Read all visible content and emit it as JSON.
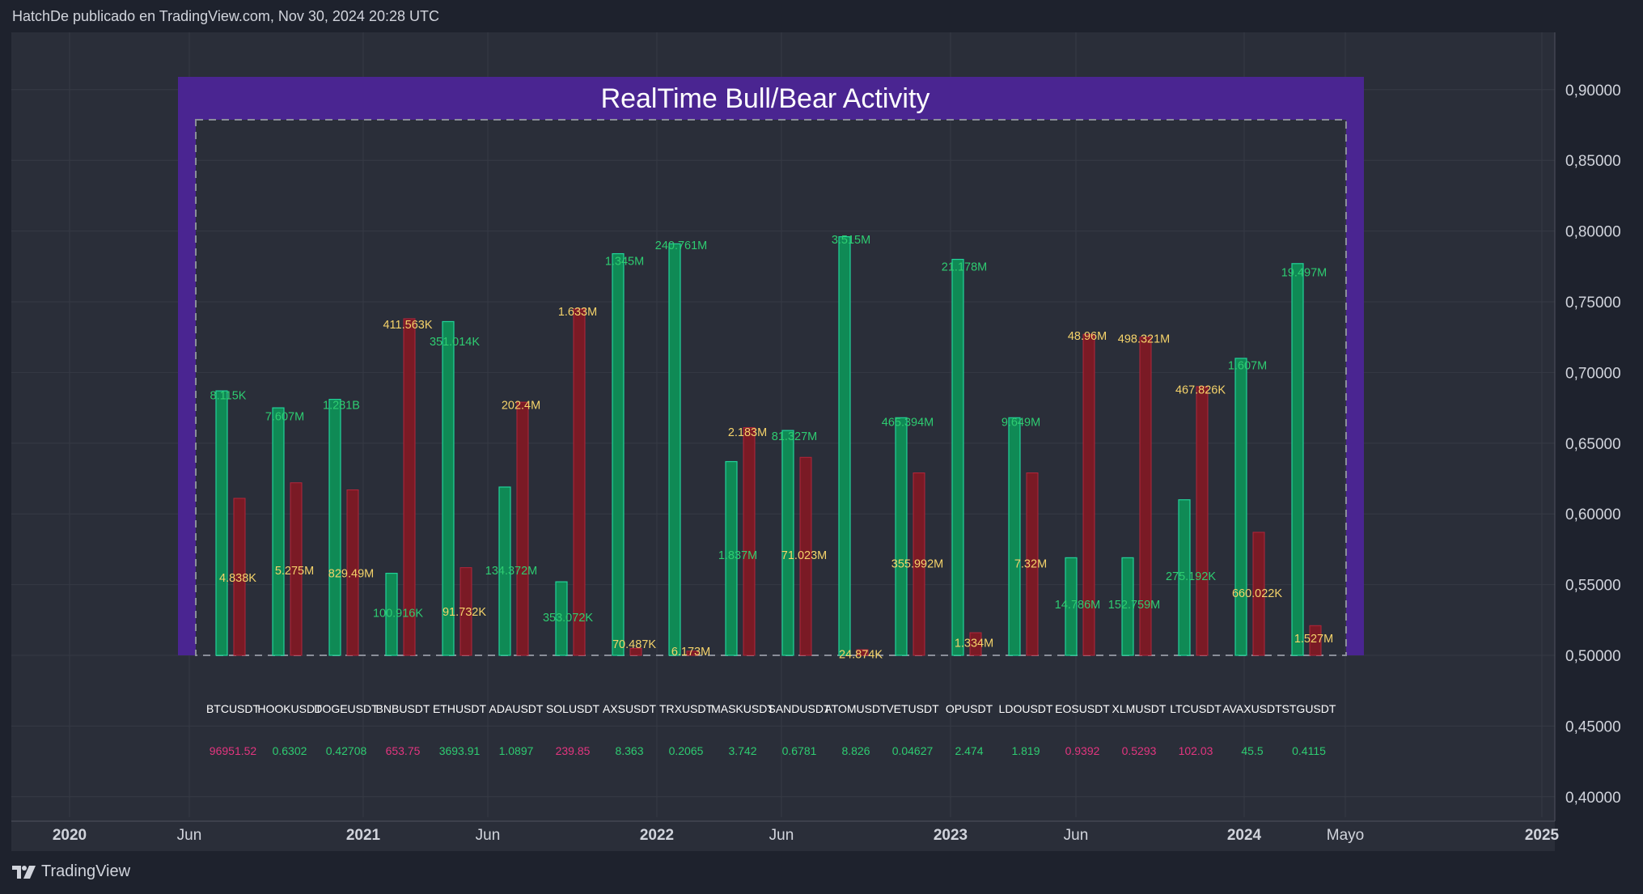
{
  "header": {
    "text": "HatchDe publicado en TradingView.com, Nov 30, 2024 20:28 UTC"
  },
  "footer": {
    "brand": "TradingView",
    "logo_icon": "tradingview-logo-icon"
  },
  "colors": {
    "page_bg": "#1e222d",
    "pane_bg": "#2a2e39",
    "grid": "#363a45",
    "panel": "#4a2591",
    "inner_border": "#8a8e99",
    "bull": "#0f8a55",
    "bull_border": "#22d39a",
    "bull_text": "#2ecc71",
    "bear": "#7a1a25",
    "bear_border": "#b3263a",
    "bear_text": "#f5d36a",
    "symbol_text": "#ffffff",
    "price_up": "#2ecc71",
    "price_down": "#e3357f",
    "axis_text": "#d1d4dc"
  },
  "chart_data": {
    "type": "bar",
    "title": "RealTime Bull/Bear Activity",
    "ylim": [
      0.38,
      0.93
    ],
    "y_ticks": [
      "0,90000",
      "0,85000",
      "0,80000",
      "0,75000",
      "0,70000",
      "0,65000",
      "0,60000",
      "0,55000",
      "0,50000",
      "0,45000",
      "0,40000"
    ],
    "y_tick_values": [
      0.9,
      0.85,
      0.8,
      0.75,
      0.7,
      0.65,
      0.6,
      0.55,
      0.5,
      0.45,
      0.4
    ],
    "x_ticks": [
      {
        "label": "2020",
        "bold": true
      },
      {
        "label": "Jun",
        "bold": false
      },
      {
        "label": "2021",
        "bold": true
      },
      {
        "label": "Jun",
        "bold": false
      },
      {
        "label": "2022",
        "bold": true
      },
      {
        "label": "Jun",
        "bold": false
      },
      {
        "label": "2023",
        "bold": true
      },
      {
        "label": "Jun",
        "bold": false
      },
      {
        "label": "2024",
        "bold": true
      },
      {
        "label": "Mayo",
        "bold": false
      },
      {
        "label": "2025",
        "bold": true
      }
    ],
    "baseline": 0.5,
    "categories": [
      "BTCUSDT",
      "HOOKUSDT",
      "DOGEUSDT",
      "BNBUSDT",
      "ETHUSDT",
      "ADAUSDT",
      "SOLUSDT",
      "AXSUSDT",
      "TRXUSDT",
      "MASKUSDT",
      "SANDUSDT",
      "ATOMUSDT",
      "VETUSDT",
      "OPUSDT",
      "LDOUSDT",
      "EOSUSDT",
      "XLMUSDT",
      "LTCUSDT",
      "AVAXUSDT",
      "STGUSDT"
    ],
    "series": [
      {
        "name": "Bull",
        "values": [
          0.687,
          0.675,
          0.681,
          0.558,
          0.736,
          0.619,
          0.552,
          0.784,
          0.791,
          0.637,
          0.659,
          0.796,
          0.668,
          0.78,
          0.668,
          0.569,
          0.569,
          0.61,
          0.71,
          0.777
        ],
        "labels": [
          "8.115K",
          "7.607M",
          "1.281B",
          "100.916K",
          "351.014K",
          "134.372M",
          "353.072K",
          "1.345M",
          "240.761M",
          "1.837M",
          "81.327M",
          "3.515M",
          "465.394M",
          "21.178M",
          "9.649M",
          "14.786M",
          "152.759M",
          "275.192K",
          "1.607M",
          "19.497M"
        ],
        "label_values": [
          0.684,
          0.669,
          0.677,
          0.53,
          0.722,
          0.56,
          0.527,
          0.779,
          0.79,
          0.571,
          0.655,
          0.794,
          0.665,
          0.775,
          0.665,
          0.536,
          0.536,
          0.556,
          0.705,
          0.771
        ]
      },
      {
        "name": "Bear",
        "values": [
          0.611,
          0.622,
          0.617,
          0.738,
          0.562,
          0.679,
          0.745,
          0.505,
          0.503,
          0.661,
          0.64,
          0.504,
          0.629,
          0.516,
          0.629,
          0.727,
          0.725,
          0.69,
          0.587,
          0.521
        ],
        "labels": [
          "4.838K",
          "5.275M",
          "829.49M",
          "411.563K",
          "91.732K",
          "202.4M",
          "1.633M",
          "70.487K",
          "6.173M",
          "2.183M",
          "71.023M",
          "24.874K",
          "355.992M",
          "1.334M",
          "7.32M",
          "48.96M",
          "498.321M",
          "467.826K",
          "660.022K",
          "1.527M"
        ],
        "label_values": [
          0.555,
          0.56,
          0.558,
          0.734,
          0.531,
          0.677,
          0.743,
          0.508,
          0.503,
          0.658,
          0.571,
          0.501,
          0.565,
          0.509,
          0.565,
          0.726,
          0.724,
          0.688,
          0.544,
          0.512
        ]
      }
    ],
    "prices": [
      "96951.52",
      "0.6302",
      "0.42708",
      "653.75",
      "3693.91",
      "1.0897",
      "239.85",
      "8.363",
      "0.2065",
      "3.742",
      "0.6781",
      "8.826",
      "0.04627",
      "2.474",
      "1.819",
      "0.9392",
      "0.5293",
      "102.03",
      "45.5",
      "0.4115"
    ],
    "price_dir": [
      "down",
      "up",
      "up",
      "down",
      "up",
      "up",
      "down",
      "up",
      "up",
      "up",
      "up",
      "up",
      "up",
      "up",
      "up",
      "down",
      "down",
      "down",
      "up",
      "up"
    ]
  }
}
